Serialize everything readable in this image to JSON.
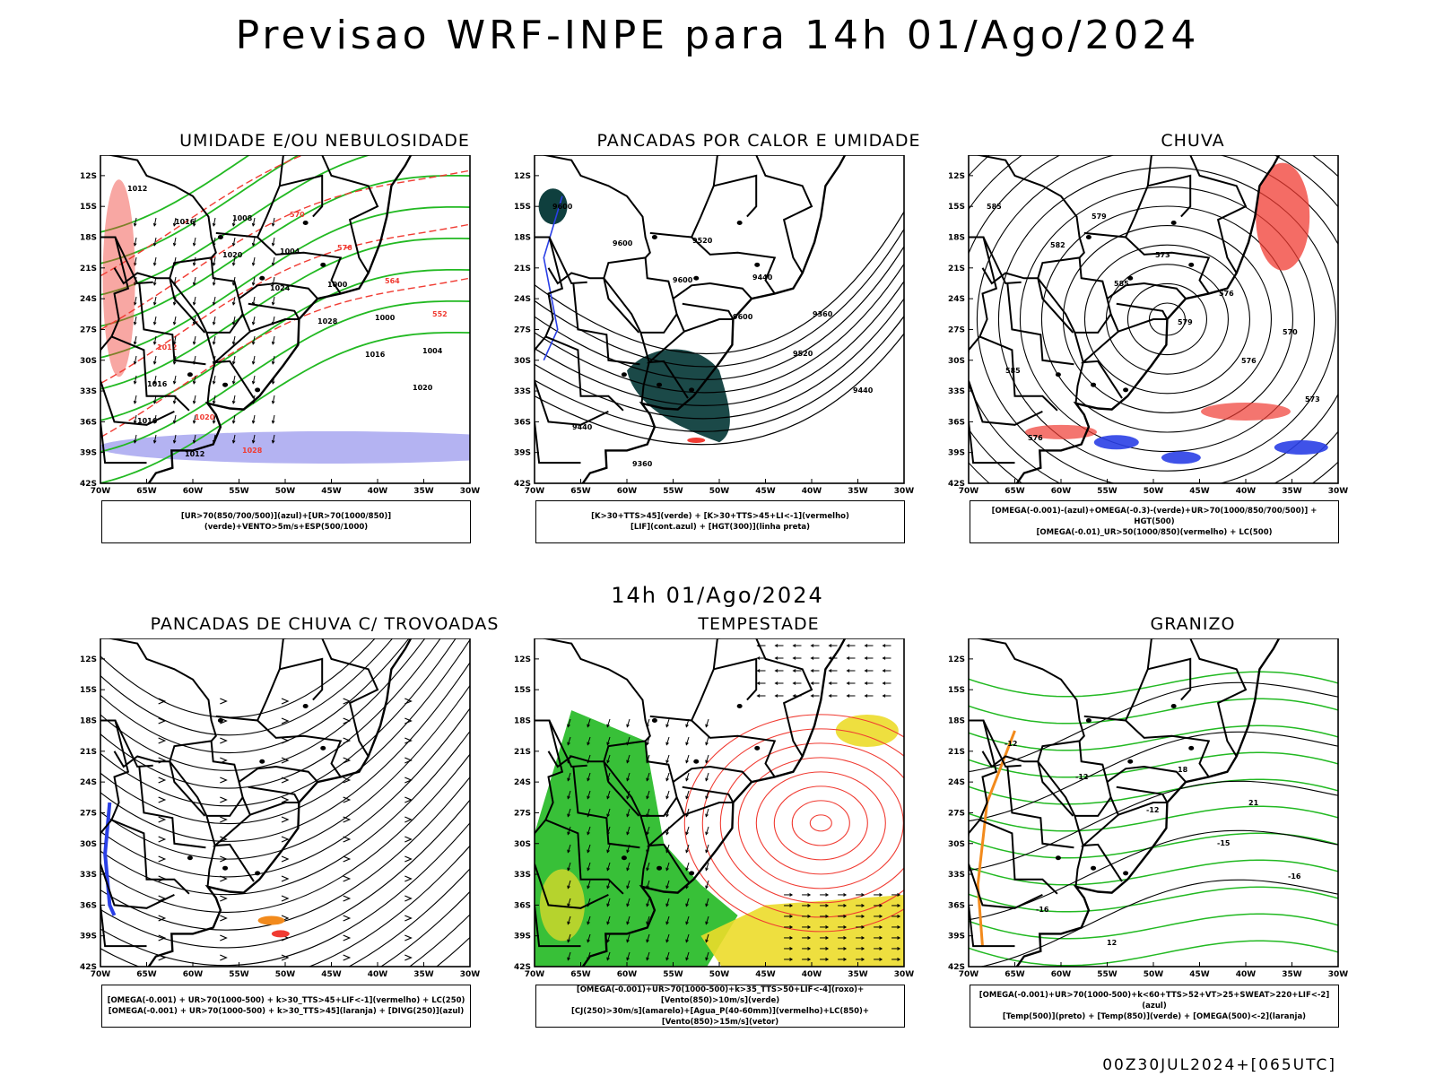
{
  "title": "Previsao WRF-INPE  para 14h 01/Ago/2024",
  "middle_title": "14h 01/Ago/2024",
  "footer": "00Z30JUL2024+[065UTC]",
  "lat_ticks": [
    "12S",
    "15S",
    "18S",
    "21S",
    "24S",
    "27S",
    "30S",
    "33S",
    "36S",
    "39S",
    "42S"
  ],
  "lon_ticks": [
    "70W",
    "65W",
    "60W",
    "55W",
    "50W",
    "45W",
    "40W",
    "35W",
    "30W"
  ],
  "colors": {
    "green": "#22b922",
    "red": "#f03b32",
    "blue": "#2a3fe6",
    "dark_teal": "#0f3f3e",
    "lavender": "#a7a6f0",
    "yellow": "#ecdb2a",
    "orange": "#f28a1c",
    "coast": "#000000"
  },
  "panels": [
    {
      "id": "umidade",
      "title": "UMIDADE E/OU NEBULOSIDADE",
      "caption": [
        "[UR>70(850/700/500)](azul)+[UR>70(1000/850)](verde)+VENTO>5m/s+ESP(500/1000)"
      ],
      "contour_labels": [
        "1012",
        "1016",
        "1020",
        "1024",
        "1028",
        "1016",
        "1020",
        "1016",
        "1012",
        "1008",
        "1004",
        "1000",
        "1000",
        "1004",
        "1016",
        "1020",
        "1028",
        "570",
        "576",
        "564",
        "552",
        "1012"
      ]
    },
    {
      "id": "pancadas_calor",
      "title": "PANCADAS POR CALOR E UMIDADE",
      "caption": [
        "[K>30+TTS>45](verde) + [K>30+TTS>45+LI<-1](vermelho)",
        "[LIF](cont.azul) + [HGT(300)](linha preta)"
      ],
      "contour_labels": [
        "9600",
        "9600",
        "9600",
        "9600",
        "9520",
        "9440",
        "9440",
        "9360",
        "9520",
        "9440",
        "9360"
      ]
    },
    {
      "id": "chuva",
      "title": "CHUVA",
      "caption": [
        "[OMEGA(-0.001)-(azul)+OMEGA(-0.3)-(verde)+UR>70(1000/850/700/500)] + HGT(500)",
        "[OMEGA(-0.01)_UR>50(1000/850)(vermelho) + LC(500)"
      ],
      "contour_labels": [
        "585",
        "582",
        "585",
        "579",
        "576",
        "573",
        "576",
        "579",
        "573",
        "576",
        "570",
        "585"
      ]
    },
    {
      "id": "pancadas_trovoadas",
      "title": "PANCADAS DE CHUVA C/ TROVOADAS",
      "caption": [
        "[OMEGA(-0.001) + UR>70(1000-500) + k>30_TTS>45+LIF<-1](vermelho) + LC(250)",
        "[OMEGA(-0.001) + UR>70(1000-500) + k>30_TTS>45](laranja) + [DIVG(250)](azul)"
      ],
      "contour_labels": []
    },
    {
      "id": "tempestade",
      "title": "TEMPESTADE",
      "caption": [
        "[OMEGA(-0.001)+UR>70(1000-500)+k>35_TTS>50+LIF<-4](roxo)+[Vento(850)>10m/s](verde)",
        "[CJ(250)>30m/s](amarelo)+[Agua_P(40-60mm)](vermelho)+LC(850)+[Vento(850)>15m/s](vetor)"
      ],
      "contour_labels": []
    },
    {
      "id": "granizo",
      "title": "GRANIZO",
      "caption": [
        "[OMEGA(-0.001)+UR>70(1000-500)+k<60+TTS>52+VT>25+SWEAT>220+LIF<-2](azul)",
        "[Temp(500)](preto) + [Temp(850)](verde) + [OMEGA(500)<-2](laranja)"
      ],
      "contour_labels": [
        "-12",
        "-12",
        "-12",
        "-15",
        "-16",
        "-16",
        "12",
        "18",
        "21"
      ]
    }
  ]
}
